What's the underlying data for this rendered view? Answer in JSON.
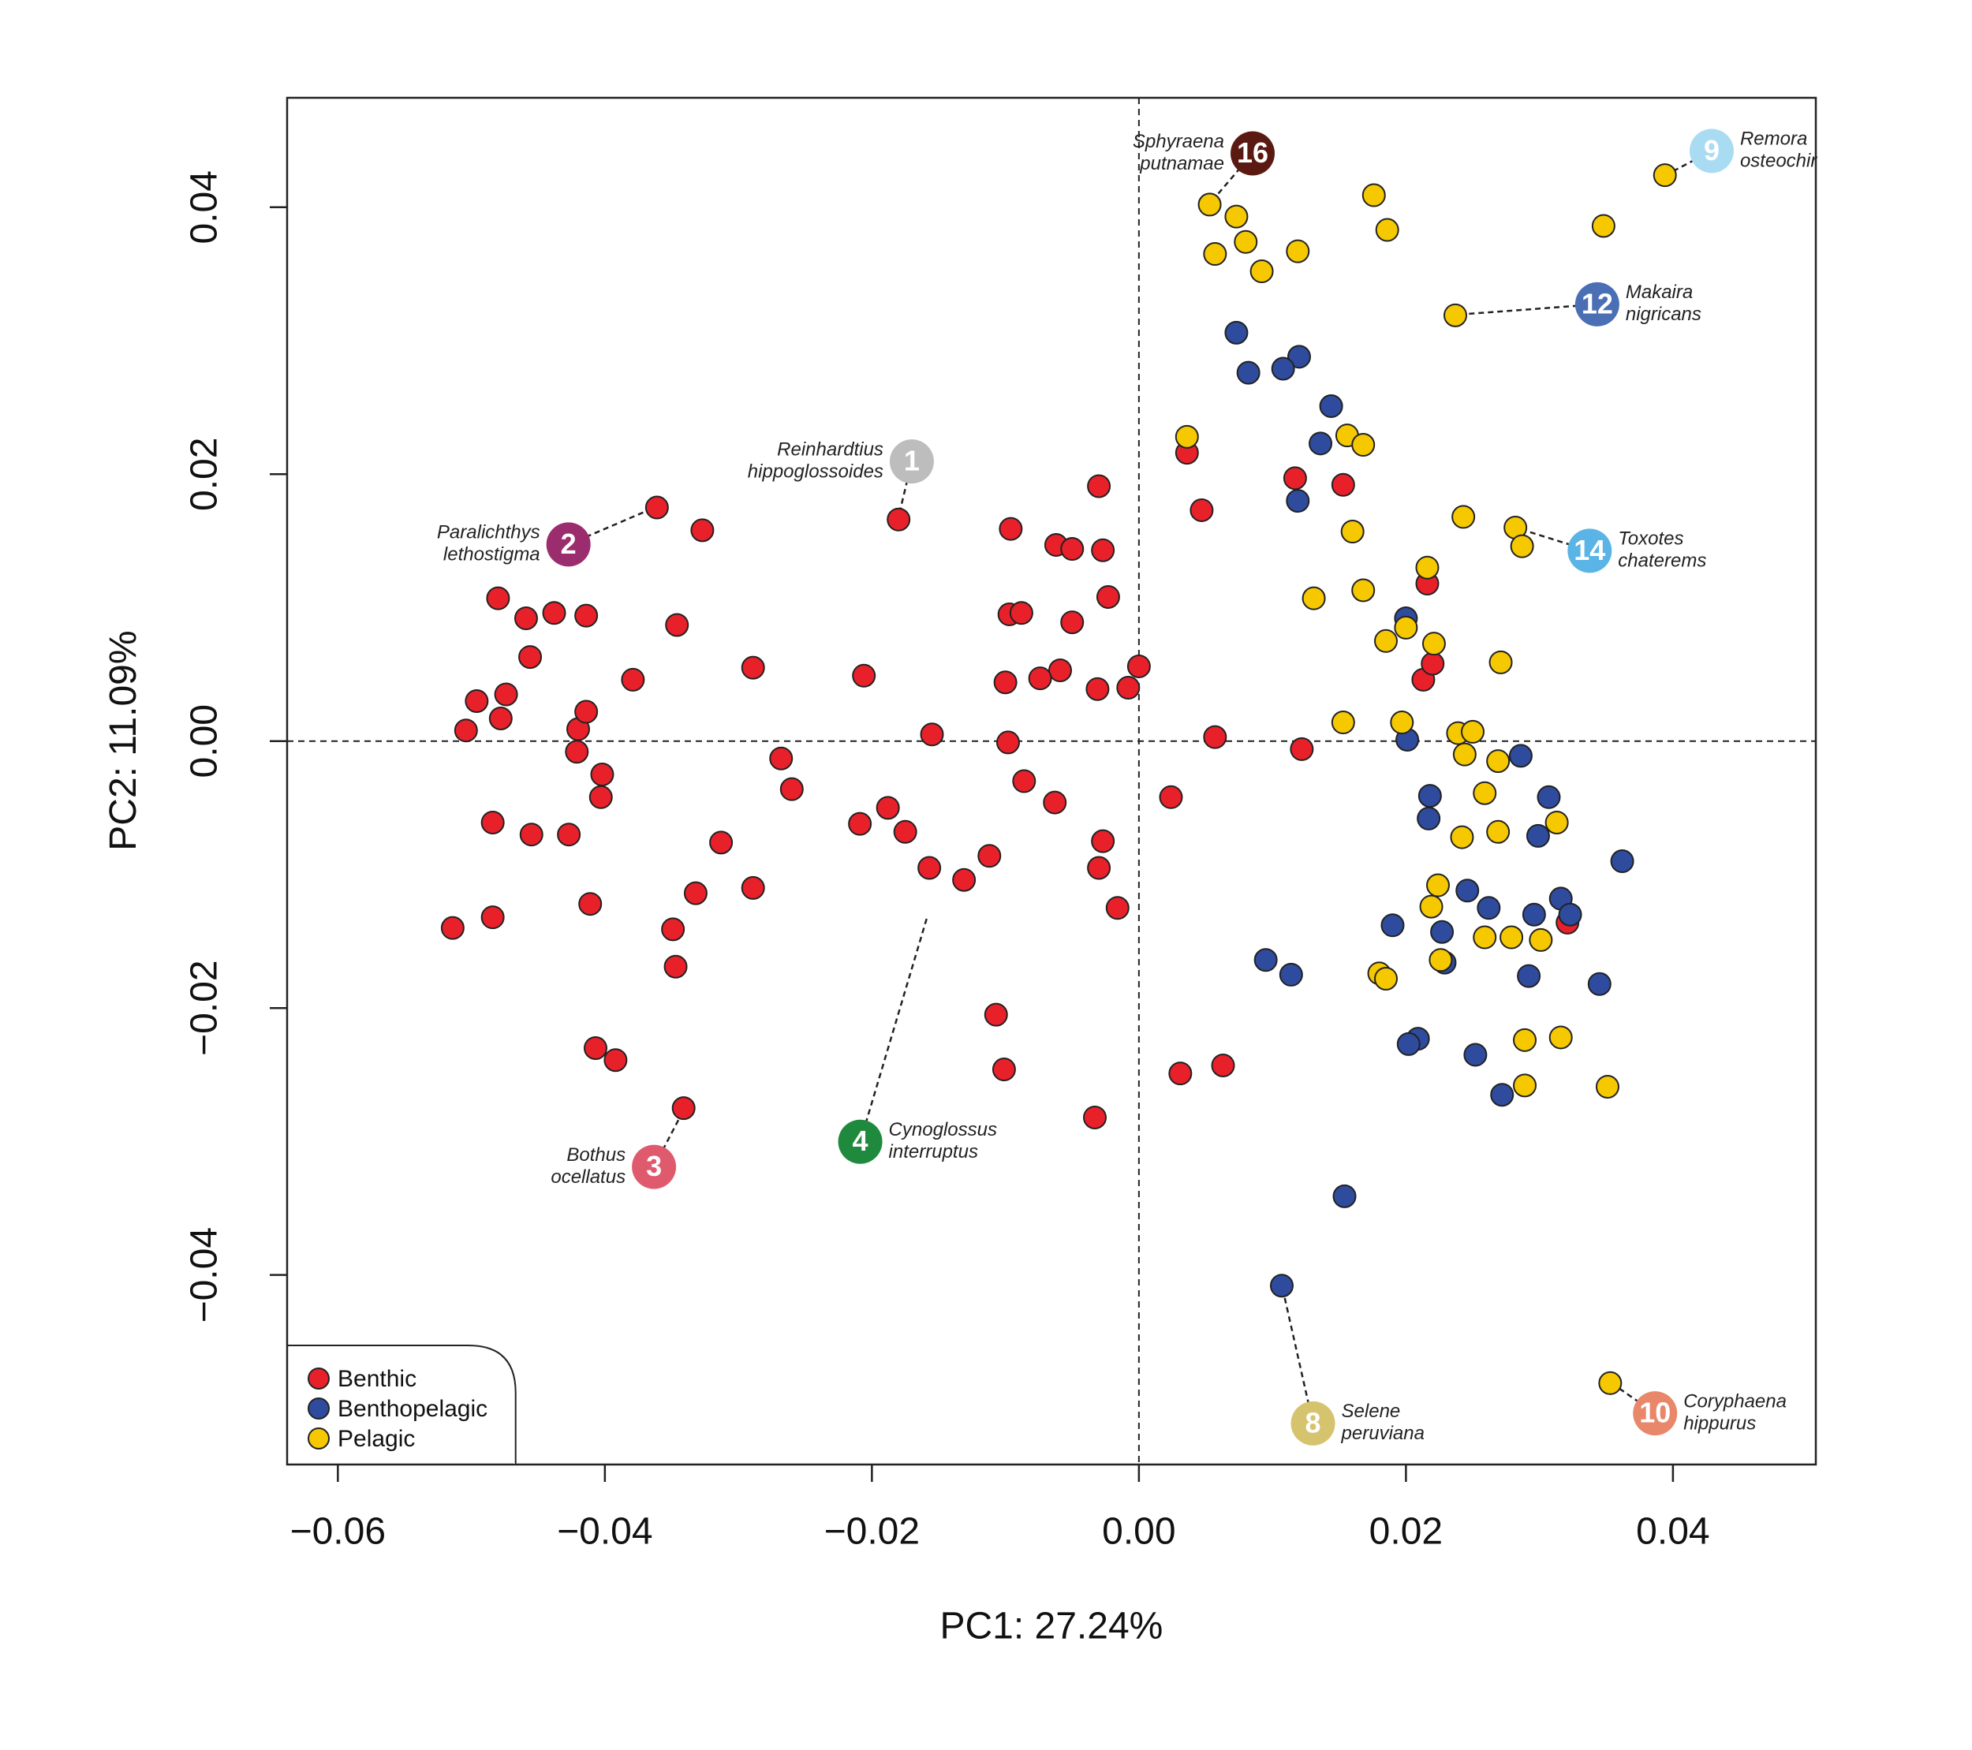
{
  "chart_data": {
    "type": "scatter",
    "x_label": "PC1: 27.24%",
    "y_label": "PC2: 11.09%",
    "xlim": [
      -0.0638,
      0.0507
    ],
    "ylim": [
      -0.0542,
      0.0482
    ],
    "xticks": [
      {
        "value": -0.06,
        "label": "−0.06"
      },
      {
        "value": -0.04,
        "label": "−0.04"
      },
      {
        "value": -0.02,
        "label": "−0.02"
      },
      {
        "value": 0,
        "label": "0.00"
      },
      0.02,
      0.04
    ],
    "yticks": [
      {
        "value": -0.04,
        "label": "−0.04"
      },
      {
        "value": -0.02,
        "label": "−0.02"
      },
      {
        "value": 0,
        "label": "0.00"
      },
      0.02,
      0.04
    ],
    "zero_lines": true,
    "legend": "bottom-left",
    "series": [
      {
        "name": "Benthic",
        "color": "#e8202a",
        "x": [
          -0.0361,
          -0.0327,
          -0.048,
          -0.0459,
          -0.0438,
          -0.0414,
          -0.0456,
          -0.0496,
          -0.0474,
          -0.0504,
          -0.0478,
          -0.042,
          -0.0414,
          -0.0421,
          -0.0402,
          -0.0403,
          -0.0484,
          -0.0455,
          -0.0427,
          -0.0514,
          -0.0484,
          -0.0411,
          -0.0349,
          -0.0332,
          -0.0347,
          -0.0407,
          -0.0392,
          -0.0341,
          -0.0379,
          -0.0346,
          -0.0289,
          -0.0313,
          -0.0289,
          -0.0268,
          -0.026,
          -0.0206,
          -0.0209,
          -0.0188,
          -0.0175,
          -0.0157,
          -0.0155,
          -0.0131,
          -0.0112,
          -0.018,
          -0.0096,
          -0.0062,
          -0.005,
          -0.0027,
          -0.003,
          -0.0023,
          -0.0097,
          -0.0088,
          -0.005,
          -0.0059,
          -0.01,
          -0.0074,
          -0.0031,
          -0.0008,
          0.0,
          -0.0098,
          -0.0086,
          -0.0063,
          -0.0027,
          -0.003,
          -0.0016,
          -0.0107,
          -0.0101,
          -0.0033,
          0.0024,
          0.0047,
          0.0036,
          0.0057,
          0.0031,
          0.0063,
          0.0122,
          0.0117,
          0.0153,
          0.0216,
          0.0213,
          0.022,
          0.0321
        ],
        "values": [
          0.0175,
          0.0158,
          0.0107,
          0.0092,
          0.0096,
          0.0094,
          0.0063,
          0.003,
          0.0035,
          0.0008,
          0.0017,
          0.0009,
          0.0022,
          -0.0008,
          -0.0025,
          -0.0042,
          -0.0061,
          -0.007,
          -0.007,
          -0.014,
          -0.0132,
          -0.0122,
          -0.0141,
          -0.0114,
          -0.0169,
          -0.023,
          -0.0239,
          -0.0275,
          0.0046,
          0.0087,
          0.0055,
          -0.0076,
          -0.011,
          -0.0013,
          -0.0036,
          0.0049,
          -0.0062,
          -0.005,
          -0.0068,
          -0.0095,
          0.0005,
          -0.0104,
          -0.0086,
          0.0166,
          0.0159,
          0.0147,
          0.0144,
          0.0143,
          0.0191,
          0.0108,
          0.0095,
          0.0096,
          0.0089,
          0.0053,
          0.0044,
          0.0047,
          0.0039,
          0.004,
          0.0056,
          -0.0001,
          -0.003,
          -0.0046,
          -0.0075,
          -0.0095,
          -0.0125,
          -0.0205,
          -0.0246,
          -0.0282,
          -0.0042,
          0.0173,
          0.0216,
          0.0003,
          -0.0249,
          -0.0243,
          -0.0006,
          0.0197,
          0.0192,
          0.0118,
          0.0046,
          0.0058,
          -0.0136
        ]
      },
      {
        "name": "Benthopelagic",
        "color": "#2e4b9e",
        "x": [
          0.0073,
          0.0082,
          0.012,
          0.0108,
          0.0144,
          0.0136,
          0.0119,
          0.0095,
          0.0114,
          0.0154,
          0.0107,
          0.02,
          0.0201,
          0.0218,
          0.0286,
          0.0307,
          0.0299,
          0.0362,
          0.019,
          0.0227,
          0.0246,
          0.0262,
          0.0296,
          0.0316,
          0.0323,
          0.0292,
          0.0345,
          0.0229,
          0.0209,
          0.0202,
          0.0252,
          0.0272,
          0.0217
        ],
        "values": [
          0.0306,
          0.0276,
          0.0288,
          0.0279,
          0.0251,
          0.0223,
          0.018,
          -0.0164,
          -0.0175,
          -0.0341,
          -0.0408,
          0.0092,
          0.0001,
          -0.0041,
          -0.0011,
          -0.0042,
          -0.0071,
          -0.009,
          -0.0138,
          -0.0143,
          -0.0112,
          -0.0125,
          -0.013,
          -0.0118,
          -0.013,
          -0.0176,
          -0.0182,
          -0.0166,
          -0.0223,
          -0.0227,
          -0.0235,
          -0.0265,
          -0.0058
        ]
      },
      {
        "name": "Pelagic",
        "color": "#f5c800",
        "x": [
          0.0053,
          0.0073,
          0.0057,
          0.008,
          0.0092,
          0.0119,
          0.0176,
          0.0186,
          0.0348,
          0.0394,
          0.0237,
          0.0036,
          0.0156,
          0.0168,
          0.016,
          0.0131,
          0.0168,
          0.0243,
          0.0282,
          0.0287,
          0.0216,
          0.02,
          0.0185,
          0.0221,
          0.0271,
          0.0197,
          0.0153,
          0.0239,
          0.025,
          0.0244,
          0.0269,
          0.0259,
          0.0242,
          0.0269,
          0.0313,
          0.0224,
          0.0219,
          0.0259,
          0.0279,
          0.0301,
          0.018,
          0.0185,
          0.0226,
          0.0289,
          0.0316,
          0.0289,
          0.0351,
          0.0353
        ],
        "values": [
          0.0402,
          0.0393,
          0.0365,
          0.0374,
          0.0352,
          0.0367,
          0.0409,
          0.0383,
          0.0386,
          0.0424,
          0.0319,
          0.0228,
          0.0229,
          0.0222,
          0.0157,
          0.0107,
          0.0113,
          0.0168,
          0.016,
          0.0146,
          0.013,
          0.0085,
          0.0075,
          0.0073,
          0.0059,
          0.0014,
          0.0014,
          0.0006,
          0.0007,
          -0.001,
          -0.0015,
          -0.0039,
          -0.0072,
          -0.0068,
          -0.0061,
          -0.0108,
          -0.0124,
          -0.0147,
          -0.0147,
          -0.0149,
          -0.0174,
          -0.0178,
          -0.0164,
          -0.0224,
          -0.0222,
          -0.0258,
          -0.0259,
          -0.0481
        ]
      }
    ],
    "annotations": [
      {
        "number": "1",
        "color": "#bdbdbd",
        "text": [
          "Reinhardtius",
          "hippoglossoides"
        ]
      },
      {
        "number": "2",
        "color": "#9b2d6e",
        "text": [
          "Paralichthys",
          "lethostigma"
        ]
      },
      {
        "number": "3",
        "color": "#e05a6e",
        "text": [
          "Bothus",
          "ocellatus"
        ]
      },
      {
        "number": "4",
        "color": "#1f8a3e",
        "text": [
          "Cynoglossus",
          "interruptus"
        ]
      },
      {
        "number": "8",
        "color": "#d6c36e",
        "text": [
          "Selene",
          "peruviana"
        ]
      },
      {
        "number": "9",
        "color": "#a9dcf2",
        "text": [
          "Remora",
          "osteochir"
        ]
      },
      {
        "number": "10",
        "color": "#e8876a",
        "text": [
          "Coryphaena",
          "hippurus"
        ]
      },
      {
        "number": "12",
        "color": "#4a6fb5",
        "text": [
          "Makaira",
          "nigricans"
        ]
      },
      {
        "number": "14",
        "color": "#5ab4e6",
        "text": [
          "Toxotes",
          "chaterems"
        ]
      },
      {
        "number": "16",
        "color": "#5a1a12",
        "text": [
          "Sphyraena",
          "putnamae"
        ]
      }
    ]
  }
}
